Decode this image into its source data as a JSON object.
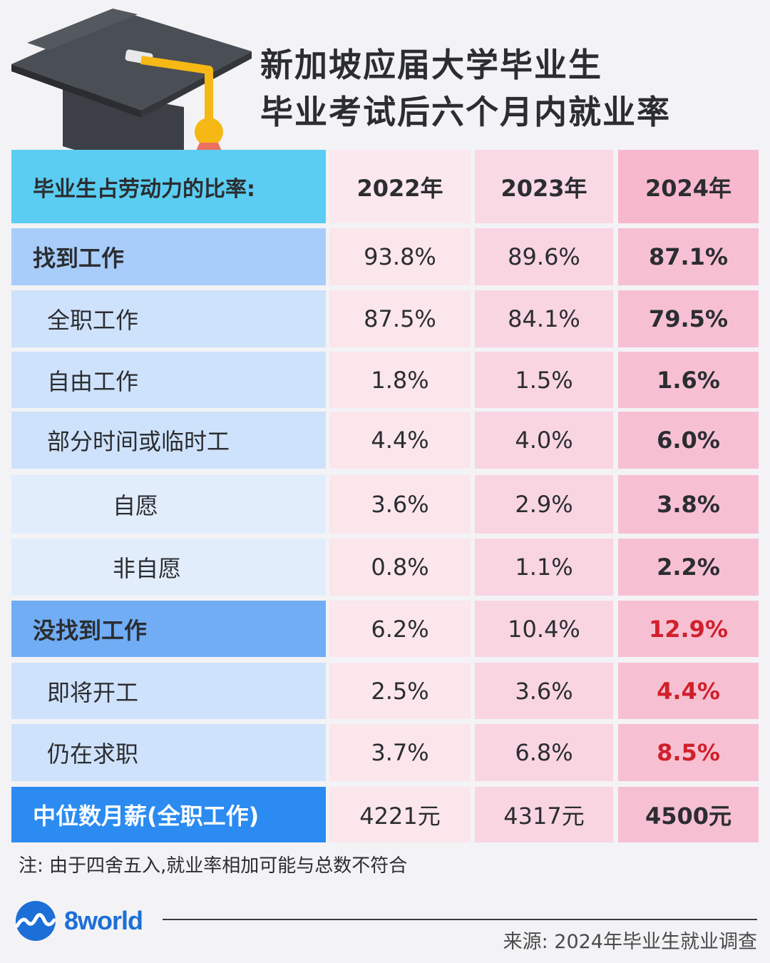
{
  "title": {
    "line1": "新加坡应届大学毕业生",
    "line2": "毕业考试后六个月内就业率"
  },
  "chart_data": {
    "type": "table",
    "header": {
      "label": "毕业生占劳动力的比率:",
      "years": [
        "2022年",
        "2023年",
        "2024年"
      ]
    },
    "rows": [
      {
        "label": "找到工作",
        "level": 0,
        "values": [
          "93.8%",
          "89.6%",
          "87.1%"
        ],
        "highlight": false
      },
      {
        "label": "全职工作",
        "level": 1,
        "values": [
          "87.5%",
          "84.1%",
          "79.5%"
        ],
        "highlight": false
      },
      {
        "label": "自由工作",
        "level": 1,
        "values": [
          "1.8%",
          "1.5%",
          "1.6%"
        ],
        "highlight": false
      },
      {
        "label": "部分时间或临时工",
        "level": 1,
        "values": [
          "4.4%",
          "4.0%",
          "6.0%"
        ],
        "highlight": false
      },
      {
        "label": "自愿",
        "level": 2,
        "values": [
          "3.6%",
          "2.9%",
          "3.8%"
        ],
        "highlight": false
      },
      {
        "label": "非自愿",
        "level": 2,
        "values": [
          "0.8%",
          "1.1%",
          "2.2%"
        ],
        "highlight": false
      },
      {
        "label": "没找到工作",
        "level": 0,
        "values": [
          "6.2%",
          "10.4%",
          "12.9%"
        ],
        "highlight": true
      },
      {
        "label": "即将开工",
        "level": 1,
        "values": [
          "2.5%",
          "3.6%",
          "4.4%"
        ],
        "highlight": true
      },
      {
        "label": "仍在求职",
        "level": 1,
        "values": [
          "3.7%",
          "6.8%",
          "8.5%"
        ],
        "highlight": true
      },
      {
        "label": "中位数月薪(全职工作)",
        "level": 0,
        "values": [
          "4221元",
          "4317元",
          "4500元"
        ],
        "highlight": false
      }
    ]
  },
  "colors": {
    "header_label": "#5bcdf2",
    "found_work": "#a9cdfa",
    "no_work": "#71adf5",
    "salary": "#2b8bf0",
    "sub_row": "#cfe2fb",
    "sub_sub_row": "#e2edfc",
    "col_2022": "#fbe6ec",
    "col_2023": "#f8d5e1",
    "col_2024": "#f7c0d2",
    "highlight_text": "#d0202c"
  },
  "footnote": "注: 由于四舍五入,就业率相加可能与总数不符合",
  "logo": {
    "text": "8world",
    "icon": "8world-logo-icon"
  },
  "source": "来源: 2024年毕业生就业调查"
}
